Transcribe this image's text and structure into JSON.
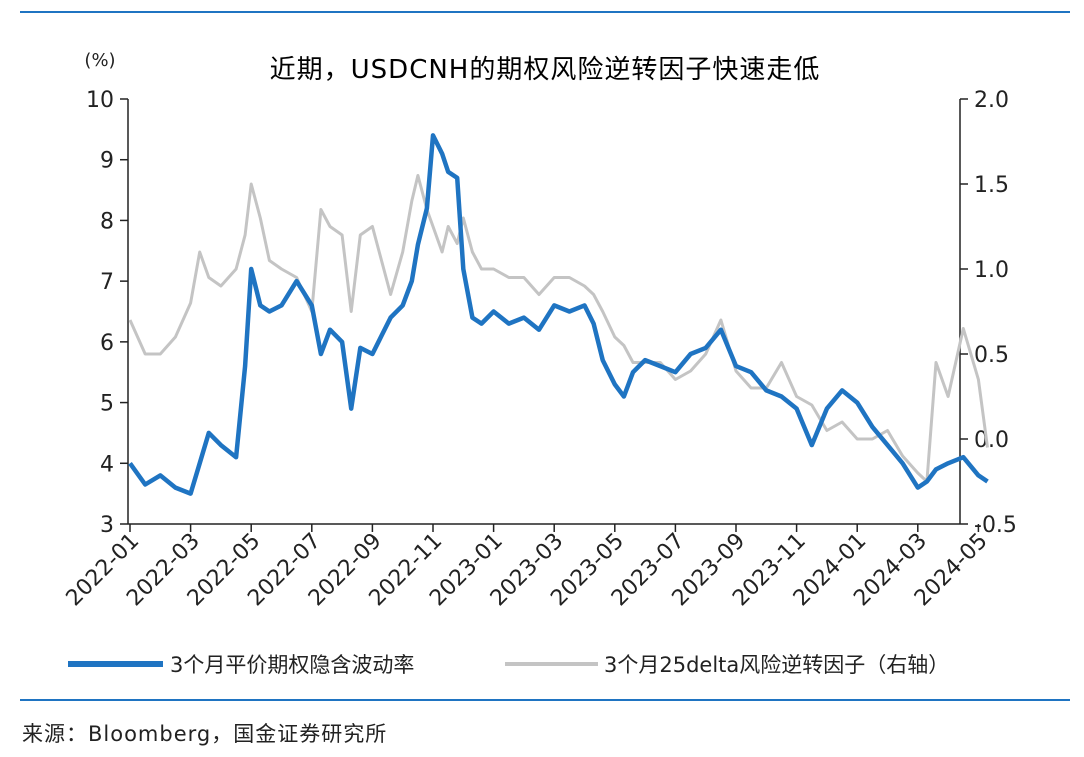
{
  "chart_data": {
    "type": "line",
    "title": "近期，USDCNH的期权风险逆转因子快速走低",
    "left_axis_unit": "(%)",
    "ylim_left": [
      3,
      10
    ],
    "left_ticks": [
      "3",
      "4",
      "5",
      "6",
      "7",
      "8",
      "9",
      "10"
    ],
    "ylim_right": [
      -0.5,
      2.0
    ],
    "right_ticks": [
      "-0.5",
      "0.0",
      "0.5",
      "1.0",
      "1.5",
      "2.0"
    ],
    "x_range": [
      "2022-01",
      "2024-05"
    ],
    "x_ticks": [
      "2022-01",
      "2022-03",
      "2022-05",
      "2022-07",
      "2022-09",
      "2022-11",
      "2023-01",
      "2023-03",
      "2023-05",
      "2023-07",
      "2023-09",
      "2023-11",
      "2024-01",
      "2024-03",
      "2024-05"
    ],
    "colors": {
      "series1": "#1f74c2",
      "series2": "#c4c4c4"
    },
    "series": [
      {
        "name": "3个月平价期权隐含波动率",
        "axis": "left",
        "x": [
          "2022-01",
          "2022-01.5",
          "2022-02",
          "2022-02.5",
          "2022-03",
          "2022-03.3",
          "2022-03.6",
          "2022-04",
          "2022-04.5",
          "2022-04.8",
          "2022-05",
          "2022-05.3",
          "2022-05.6",
          "2022-06",
          "2022-06.5",
          "2022-07",
          "2022-07.3",
          "2022-07.6",
          "2022-08",
          "2022-08.3",
          "2022-08.6",
          "2022-09",
          "2022-09.3",
          "2022-09.6",
          "2022-10",
          "2022-10.3",
          "2022-10.5",
          "2022-10.8",
          "2022-11",
          "2022-11.3",
          "2022-11.5",
          "2022-11.8",
          "2022-12",
          "2022-12.3",
          "2022-12.6",
          "2023-01",
          "2023-01.5",
          "2023-02",
          "2023-02.5",
          "2023-03",
          "2023-03.5",
          "2023-04",
          "2023-04.3",
          "2023-04.6",
          "2023-05",
          "2023-05.3",
          "2023-05.6",
          "2023-06",
          "2023-06.5",
          "2023-07",
          "2023-07.5",
          "2023-08",
          "2023-08.5",
          "2023-09",
          "2023-09.5",
          "2023-10",
          "2023-10.5",
          "2023-11",
          "2023-11.5",
          "2023-12",
          "2023-12.5",
          "2024-01",
          "2024-01.5",
          "2024-02",
          "2024-02.5",
          "2024-03",
          "2024-03.3",
          "2024-03.6",
          "2024-04",
          "2024-04.5",
          "2024-05",
          "2024-05.3"
        ],
        "values": [
          4.0,
          3.65,
          3.8,
          3.6,
          3.5,
          4.0,
          4.5,
          4.3,
          4.1,
          5.6,
          7.2,
          6.6,
          6.5,
          6.6,
          7.0,
          6.6,
          5.8,
          6.2,
          6.0,
          4.9,
          5.9,
          5.8,
          6.1,
          6.4,
          6.6,
          7.0,
          7.6,
          8.2,
          9.4,
          9.1,
          8.8,
          8.7,
          7.2,
          6.4,
          6.3,
          6.5,
          6.3,
          6.4,
          6.2,
          6.6,
          6.5,
          6.6,
          6.3,
          5.7,
          5.3,
          5.1,
          5.5,
          5.7,
          5.6,
          5.5,
          5.8,
          5.9,
          6.2,
          5.6,
          5.5,
          5.2,
          5.1,
          4.9,
          4.3,
          4.9,
          5.2,
          5.0,
          4.6,
          4.3,
          4.0,
          3.6,
          3.7,
          3.9,
          4.0,
          4.1,
          3.8,
          3.7
        ]
      },
      {
        "name": "3个月25delta风险逆转因子（右轴）",
        "axis": "right",
        "x": [
          "2022-01",
          "2022-01.5",
          "2022-02",
          "2022-02.5",
          "2022-03",
          "2022-03.3",
          "2022-03.6",
          "2022-04",
          "2022-04.5",
          "2022-04.8",
          "2022-05",
          "2022-05.3",
          "2022-05.6",
          "2022-06",
          "2022-06.5",
          "2022-07",
          "2022-07.3",
          "2022-07.6",
          "2022-08",
          "2022-08.3",
          "2022-08.6",
          "2022-09",
          "2022-09.3",
          "2022-09.6",
          "2022-10",
          "2022-10.3",
          "2022-10.5",
          "2022-10.8",
          "2022-11",
          "2022-11.3",
          "2022-11.5",
          "2022-11.8",
          "2022-12",
          "2022-12.3",
          "2022-12.6",
          "2023-01",
          "2023-01.5",
          "2023-02",
          "2023-02.5",
          "2023-03",
          "2023-03.5",
          "2023-04",
          "2023-04.3",
          "2023-04.6",
          "2023-05",
          "2023-05.3",
          "2023-05.6",
          "2023-06",
          "2023-06.5",
          "2023-07",
          "2023-07.5",
          "2023-08",
          "2023-08.5",
          "2023-09",
          "2023-09.5",
          "2023-10",
          "2023-10.5",
          "2023-11",
          "2023-11.5",
          "2023-12",
          "2023-12.5",
          "2024-01",
          "2024-01.5",
          "2024-02",
          "2024-02.5",
          "2024-03",
          "2024-03.3",
          "2024-03.6",
          "2024-04",
          "2024-04.5",
          "2024-05",
          "2024-05.3"
        ],
        "values": [
          0.7,
          0.5,
          0.5,
          0.6,
          0.8,
          1.1,
          0.95,
          0.9,
          1.0,
          1.2,
          1.5,
          1.3,
          1.05,
          1.0,
          0.95,
          0.75,
          1.35,
          1.25,
          1.2,
          0.75,
          1.2,
          1.25,
          1.05,
          0.85,
          1.1,
          1.4,
          1.55,
          1.35,
          1.25,
          1.1,
          1.25,
          1.15,
          1.3,
          1.1,
          1.0,
          1.0,
          0.95,
          0.95,
          0.85,
          0.95,
          0.95,
          0.9,
          0.85,
          0.75,
          0.6,
          0.55,
          0.45,
          0.45,
          0.45,
          0.35,
          0.4,
          0.5,
          0.7,
          0.4,
          0.3,
          0.3,
          0.45,
          0.25,
          0.2,
          0.05,
          0.1,
          0.0,
          0.0,
          0.05,
          -0.1,
          -0.2,
          -0.25,
          0.45,
          0.25,
          0.65,
          0.35,
          -0.05
        ]
      }
    ],
    "legend_position": "bottom"
  },
  "source_text": "来源：Bloomberg，国金证券研究所"
}
